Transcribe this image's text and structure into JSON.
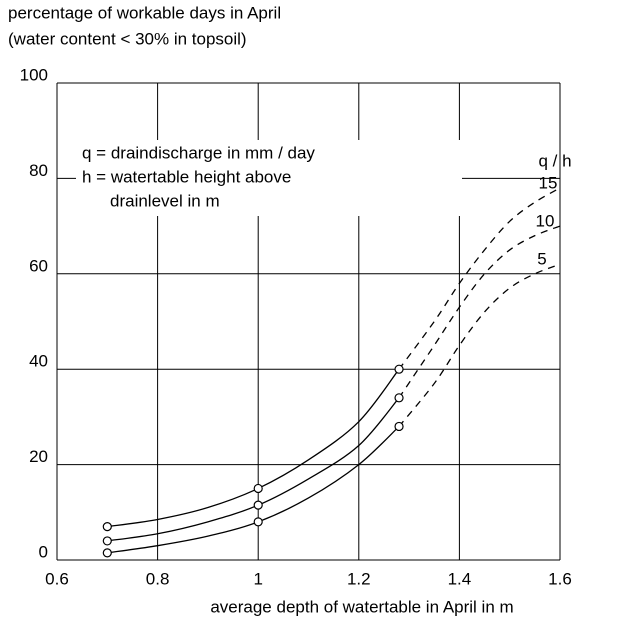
{
  "chart_data": {
    "type": "line",
    "title": [
      "percentage of workable days in April",
      "(water content < 30% in topsoil)"
    ],
    "x_label": "average depth of watertable in April in m",
    "annotation": [
      "q = draindischarge in mm / day",
      "h = watertable height above",
      "drainlevel in m"
    ],
    "legend_title": "q / h",
    "xlim": [
      0.6,
      1.6
    ],
    "xticks": [
      0.6,
      0.8,
      1.0,
      1.2,
      1.4,
      1.6
    ],
    "ylim": [
      0,
      100
    ],
    "yticks": [
      0,
      20,
      40,
      60,
      80,
      100
    ],
    "grid": true,
    "dashed_from": 1.28,
    "marker_x": [
      0.7,
      1.0,
      1.28
    ],
    "x": [
      0.7,
      0.8,
      0.9,
      1.0,
      1.1,
      1.2,
      1.28,
      1.35,
      1.4,
      1.45,
      1.5,
      1.55,
      1.6
    ],
    "series": [
      {
        "name": "15",
        "color": "#000000",
        "values": [
          7,
          8.5,
          11,
          15,
          21,
          29,
          40,
          50,
          58,
          65,
          71,
          75,
          78
        ]
      },
      {
        "name": "10",
        "color": "#000000",
        "values": [
          4,
          5.5,
          8,
          11.5,
          17,
          24,
          34,
          45,
          53,
          60,
          65,
          68,
          70
        ]
      },
      {
        "name": "5",
        "color": "#000000",
        "values": [
          1.5,
          3,
          5,
          8,
          13,
          20,
          28,
          37,
          45,
          52,
          57,
          60,
          62
        ]
      }
    ]
  }
}
